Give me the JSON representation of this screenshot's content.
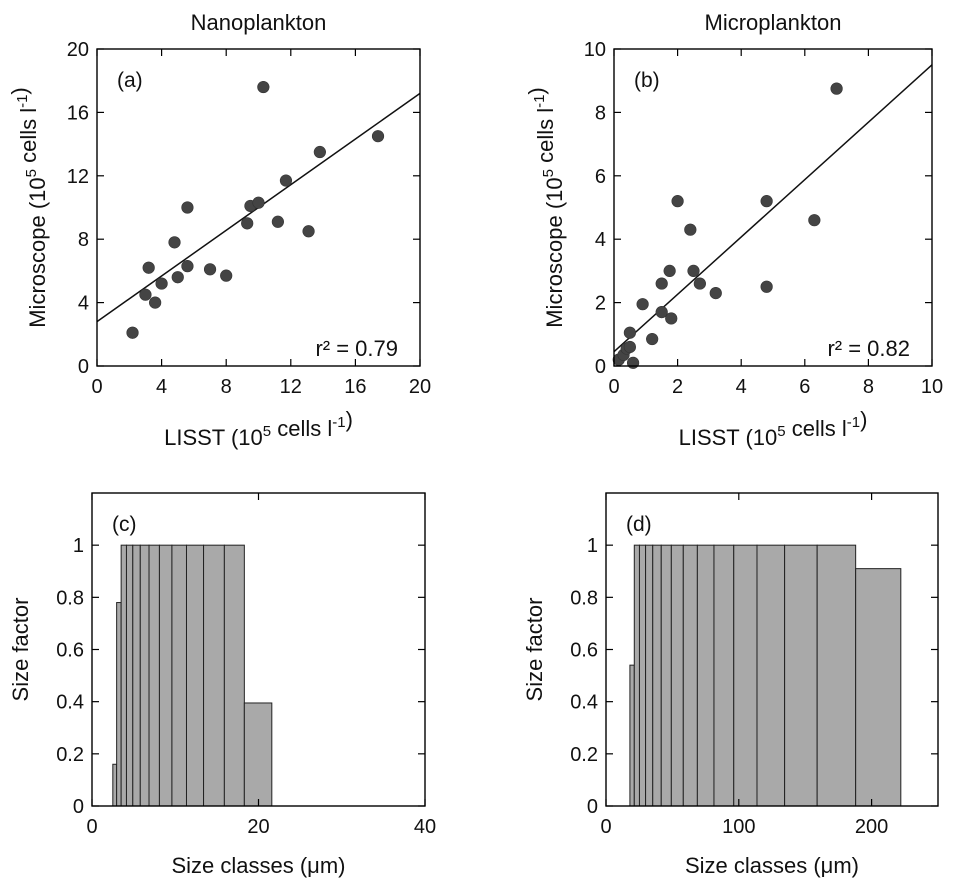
{
  "chart_data": [
    {
      "type": "scatter",
      "panel_label": "(a)",
      "title": "Nanoplankton",
      "xlabel": "LISST (10^5 cells l^-1)",
      "ylabel": "Microscope (10^5 cells l^-1)",
      "xlim": [
        0,
        20
      ],
      "ylim": [
        0,
        20
      ],
      "xticks": [
        0,
        4,
        8,
        12,
        16,
        20
      ],
      "yticks": [
        0,
        4,
        8,
        12,
        16,
        20
      ],
      "annotation": "r² = 0.79",
      "fit": {
        "x": [
          0,
          20
        ],
        "y": [
          2.8,
          17.2
        ]
      },
      "points": [
        {
          "x": 2.2,
          "y": 2.1
        },
        {
          "x": 3.0,
          "y": 4.5
        },
        {
          "x": 3.2,
          "y": 6.2
        },
        {
          "x": 3.6,
          "y": 4.0
        },
        {
          "x": 4.0,
          "y": 5.2
        },
        {
          "x": 4.8,
          "y": 7.8
        },
        {
          "x": 5.0,
          "y": 5.6
        },
        {
          "x": 5.6,
          "y": 6.3
        },
        {
          "x": 5.6,
          "y": 10.0
        },
        {
          "x": 7.0,
          "y": 6.1
        },
        {
          "x": 8.0,
          "y": 5.7
        },
        {
          "x": 9.3,
          "y": 9.0
        },
        {
          "x": 9.5,
          "y": 10.1
        },
        {
          "x": 10.0,
          "y": 10.3
        },
        {
          "x": 10.3,
          "y": 17.6
        },
        {
          "x": 11.2,
          "y": 9.1
        },
        {
          "x": 11.7,
          "y": 11.7
        },
        {
          "x": 13.1,
          "y": 8.5
        },
        {
          "x": 13.8,
          "y": 13.5
        },
        {
          "x": 17.4,
          "y": 14.5
        }
      ]
    },
    {
      "type": "scatter",
      "panel_label": "(b)",
      "title": "Microplankton",
      "xlabel": "LISST (10^5 cells l^-1)",
      "ylabel": "Microscope (10^5 cells l^-1)",
      "xlim": [
        0,
        10
      ],
      "ylim": [
        0,
        10
      ],
      "xticks": [
        0,
        2,
        4,
        6,
        8,
        10
      ],
      "yticks": [
        0,
        2,
        4,
        6,
        8,
        10
      ],
      "annotation": "r² = 0.82",
      "fit": {
        "x": [
          0,
          10
        ],
        "y": [
          0.45,
          9.5
        ]
      },
      "points": [
        {
          "x": 0.15,
          "y": 0.2
        },
        {
          "x": 0.3,
          "y": 0.35
        },
        {
          "x": 0.4,
          "y": 0.55
        },
        {
          "x": 0.5,
          "y": 0.6
        },
        {
          "x": 0.5,
          "y": 1.05
        },
        {
          "x": 0.6,
          "y": 0.1
        },
        {
          "x": 0.9,
          "y": 1.95
        },
        {
          "x": 1.2,
          "y": 0.85
        },
        {
          "x": 1.5,
          "y": 1.7
        },
        {
          "x": 1.5,
          "y": 2.6
        },
        {
          "x": 1.75,
          "y": 3.0
        },
        {
          "x": 1.8,
          "y": 1.5
        },
        {
          "x": 2.0,
          "y": 5.2
        },
        {
          "x": 2.4,
          "y": 4.3
        },
        {
          "x": 2.5,
          "y": 3.0
        },
        {
          "x": 2.7,
          "y": 2.6
        },
        {
          "x": 3.2,
          "y": 2.3
        },
        {
          "x": 4.8,
          "y": 5.2
        },
        {
          "x": 4.8,
          "y": 2.5
        },
        {
          "x": 6.3,
          "y": 4.6
        },
        {
          "x": 7.0,
          "y": 8.75
        }
      ]
    },
    {
      "type": "bar",
      "panel_label": "(c)",
      "xlabel": "Size classes (μm)",
      "ylabel": "Size factor",
      "xlim": [
        0,
        40
      ],
      "ylim": [
        0,
        1.2
      ],
      "xticks": [
        0,
        20,
        40
      ],
      "yticks": [
        0,
        0.2,
        0.4,
        0.6,
        0.8,
        1
      ],
      "bins": [
        {
          "x0": 2.5,
          "x1": 2.96,
          "value": 0.16
        },
        {
          "x0": 2.96,
          "x1": 3.5,
          "value": 0.78
        },
        {
          "x0": 3.5,
          "x1": 4.14,
          "value": 1.0
        },
        {
          "x0": 4.14,
          "x1": 4.9,
          "value": 1.0
        },
        {
          "x0": 4.9,
          "x1": 5.8,
          "value": 1.0
        },
        {
          "x0": 5.8,
          "x1": 6.85,
          "value": 1.0
        },
        {
          "x0": 6.85,
          "x1": 8.1,
          "value": 1.0
        },
        {
          "x0": 8.1,
          "x1": 9.6,
          "value": 1.0
        },
        {
          "x0": 9.6,
          "x1": 11.35,
          "value": 1.0
        },
        {
          "x0": 11.35,
          "x1": 13.4,
          "value": 1.0
        },
        {
          "x0": 13.4,
          "x1": 15.9,
          "value": 1.0
        },
        {
          "x0": 15.9,
          "x1": 18.3,
          "value": 1.0
        },
        {
          "x0": 18.3,
          "x1": 21.6,
          "value": 0.395
        }
      ]
    },
    {
      "type": "bar",
      "panel_label": "(d)",
      "xlabel": "Size classes (μm)",
      "ylabel": "Size factor",
      "xlim": [
        0,
        250
      ],
      "ylim": [
        0,
        1.2
      ],
      "xticks": [
        0,
        100,
        200
      ],
      "yticks": [
        0,
        0.2,
        0.4,
        0.6,
        0.8,
        1
      ],
      "bins": [
        {
          "x0": 18.0,
          "x1": 21.3,
          "value": 0.54
        },
        {
          "x0": 21.3,
          "x1": 25.2,
          "value": 1.0
        },
        {
          "x0": 25.2,
          "x1": 29.8,
          "value": 1.0
        },
        {
          "x0": 29.8,
          "x1": 35.2,
          "value": 1.0
        },
        {
          "x0": 35.2,
          "x1": 41.6,
          "value": 1.0
        },
        {
          "x0": 41.6,
          "x1": 49.2,
          "value": 1.0
        },
        {
          "x0": 49.2,
          "x1": 58.2,
          "value": 1.0
        },
        {
          "x0": 58.2,
          "x1": 68.8,
          "value": 1.0
        },
        {
          "x0": 68.8,
          "x1": 81.3,
          "value": 1.0
        },
        {
          "x0": 81.3,
          "x1": 96.2,
          "value": 1.0
        },
        {
          "x0": 96.2,
          "x1": 113.7,
          "value": 1.0
        },
        {
          "x0": 113.7,
          "x1": 134.5,
          "value": 1.0
        },
        {
          "x0": 134.5,
          "x1": 159.0,
          "value": 1.0
        },
        {
          "x0": 159.0,
          "x1": 188.0,
          "value": 1.0
        },
        {
          "x0": 188.0,
          "x1": 222.0,
          "value": 0.91
        }
      ]
    }
  ]
}
